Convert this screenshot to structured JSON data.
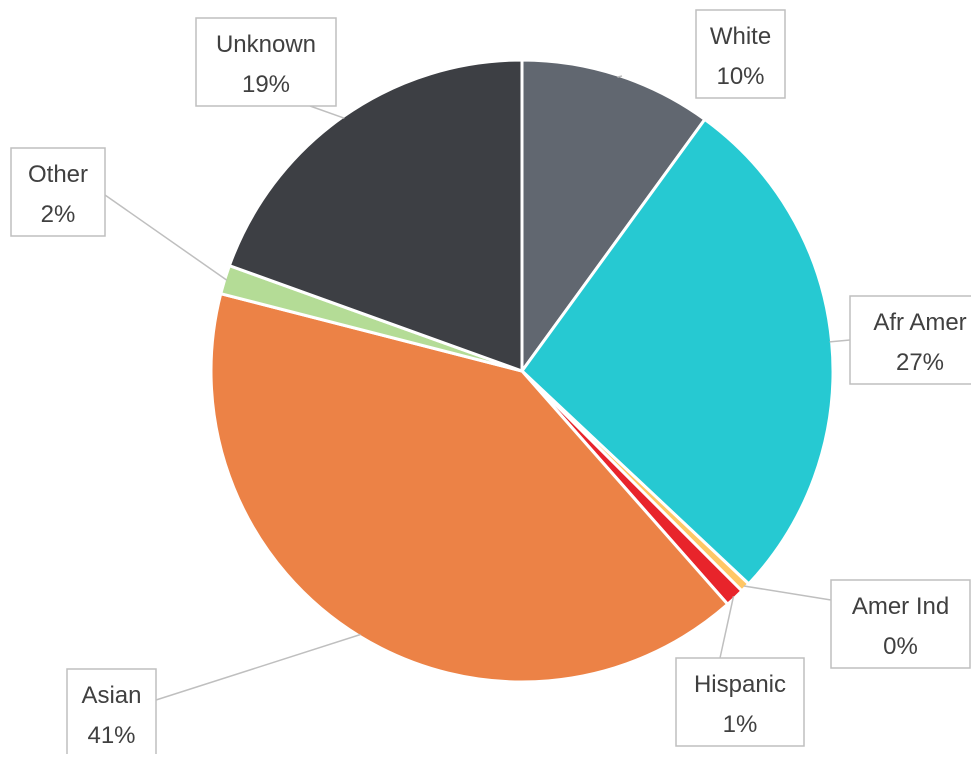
{
  "chart_data": {
    "type": "pie",
    "title": "",
    "start_angle_deg": 0,
    "direction": "clockwise",
    "slices": [
      {
        "label": "White",
        "value": 10,
        "value_label": "10%",
        "color": "#616770"
      },
      {
        "label": "Afr Amer",
        "value": 27,
        "value_label": "27%",
        "color": "#26C9D2"
      },
      {
        "label": "Amer Ind",
        "value": 0.5,
        "value_label": "0%",
        "color": "#FFC765"
      },
      {
        "label": "Hispanic",
        "value": 1,
        "value_label": "1%",
        "color": "#E8242B"
      },
      {
        "label": "Asian",
        "value": 40.5,
        "value_label": "41%",
        "color": "#EC8246"
      },
      {
        "label": "Other",
        "value": 1.5,
        "value_label": "2%",
        "color": "#B4DC96"
      },
      {
        "label": "Unknown",
        "value": 19.5,
        "value_label": "19%",
        "color": "#3D3F44"
      }
    ],
    "slice_border_color": "#ffffff",
    "label_box_border_color": "#BFBFBF",
    "leader_line_color": "#BFBFBF"
  }
}
